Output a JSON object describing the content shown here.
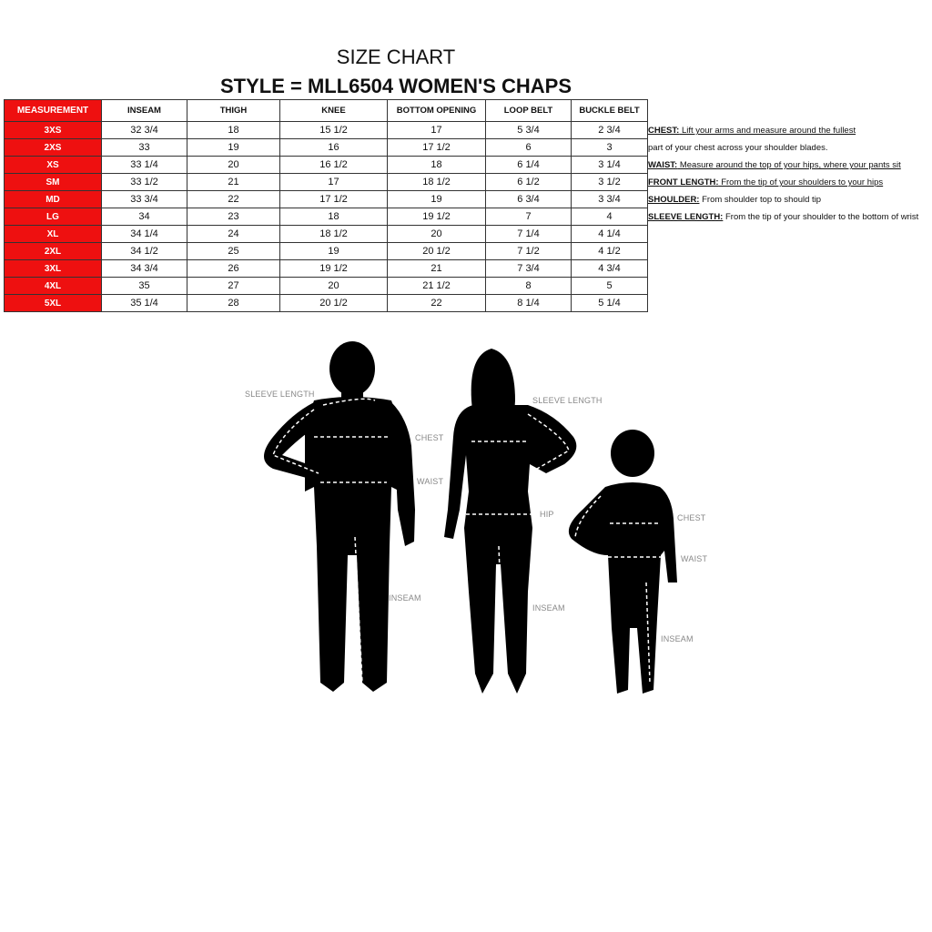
{
  "title": "SIZE CHART",
  "subtitle": "STYLE = MLL6504 WOMEN'S CHAPS",
  "table": {
    "headers": [
      "MEASUREMENT",
      "INSEAM",
      "THIGH",
      "KNEE",
      "BOTTOM OPENING",
      "LOOP BELT",
      "BUCKLE BELT"
    ],
    "rows": [
      [
        "3XS",
        "32 3/4",
        "18",
        "15 1/2",
        "17",
        "5 3/4",
        "2 3/4"
      ],
      [
        "2XS",
        "33",
        "19",
        "16",
        "17 1/2",
        "6",
        "3"
      ],
      [
        "XS",
        "33 1/4",
        "20",
        "16 1/2",
        "18",
        "6 1/4",
        "3 1/4"
      ],
      [
        "SM",
        "33 1/2",
        "21",
        "17",
        "18 1/2",
        "6 1/2",
        "3 1/2"
      ],
      [
        "MD",
        "33 3/4",
        "22",
        "17 1/2",
        "19",
        "6 3/4",
        "3 3/4"
      ],
      [
        "LG",
        "34",
        "23",
        "18",
        "19 1/2",
        "7",
        "4"
      ],
      [
        "XL",
        "34 1/4",
        "24",
        "18 1/2",
        "20",
        "7 1/4",
        "4 1/4"
      ],
      [
        "2XL",
        "34 1/2",
        "25",
        "19",
        "20 1/2",
        "7 1/2",
        "4 1/2"
      ],
      [
        "3XL",
        "34 3/4",
        "26",
        "19 1/2",
        "21",
        "7 3/4",
        "4 3/4"
      ],
      [
        "4XL",
        "35",
        "27",
        "20",
        "21 1/2",
        "8",
        "5"
      ],
      [
        "5XL",
        "35 1/4",
        "28",
        "20 1/2",
        "22",
        "8 1/4",
        "5 1/4"
      ]
    ]
  },
  "notes": [
    {
      "label": "CHEST:",
      "text": " Lift your arms and measure around the fullest "
    },
    {
      "label": "",
      "text": "part of your chest across your shoulder blades."
    },
    {
      "label": "WAIST:",
      "text": " Measure around the top of  your hips, where your pants sit"
    },
    {
      "label": "FRONT LENGTH:",
      "text": " From the tip of your shoulders to your hips"
    },
    {
      "label": "SHOULDER:",
      "text": " From shoulder top to should tip"
    },
    {
      "label": "SLEEVE LENGTH:",
      "text": " From the tip of your shoulder to the bottom of wrist"
    }
  ],
  "figure_labels": {
    "man": {
      "sleeve": "SLEEVE LENGTH",
      "chest": "CHEST",
      "waist": "WAIST",
      "inseam": "INSEAM"
    },
    "woman": {
      "sleeve": "SLEEVE LENGTH",
      "hip": "HIP",
      "inseam": "INSEAM"
    },
    "child": {
      "chest": "CHEST",
      "waist": "WAIST",
      "inseam": "INSEAM"
    }
  },
  "colors": {
    "header_red": "#ee1010"
  }
}
